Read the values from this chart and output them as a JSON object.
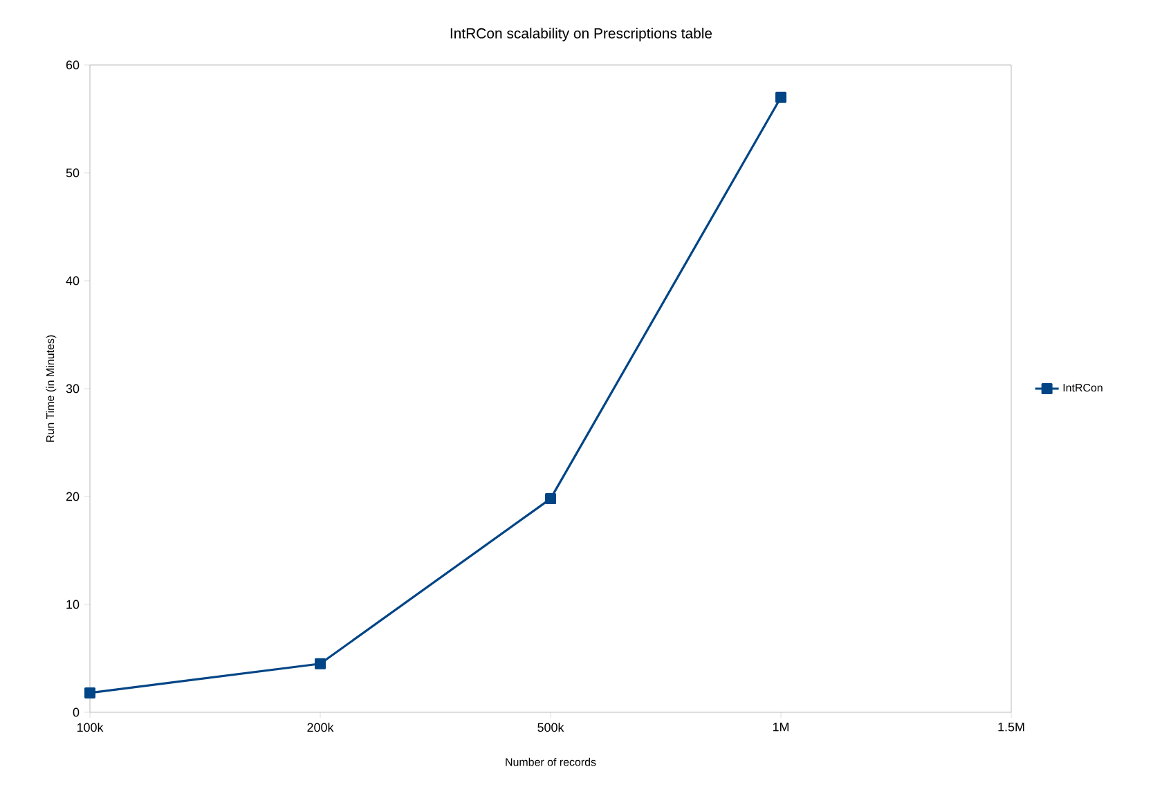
{
  "chart_data": {
    "type": "line",
    "title": "IntRCon scalability on Prescriptions table",
    "xlabel": "Number of records",
    "ylabel": "Run Time (in Minutes)",
    "categories": [
      "100k",
      "200k",
      "500k",
      "1M",
      "1.5M"
    ],
    "series": [
      {
        "name": "IntRCon",
        "color": "#004586",
        "values": [
          1.8,
          4.5,
          19.8,
          57,
          null
        ]
      }
    ],
    "ylim": [
      0,
      60
    ],
    "yticks": [
      0,
      10,
      20,
      30,
      40,
      50,
      60
    ],
    "grid": false,
    "legend": "right",
    "marker": "square",
    "line_style": "solid"
  }
}
